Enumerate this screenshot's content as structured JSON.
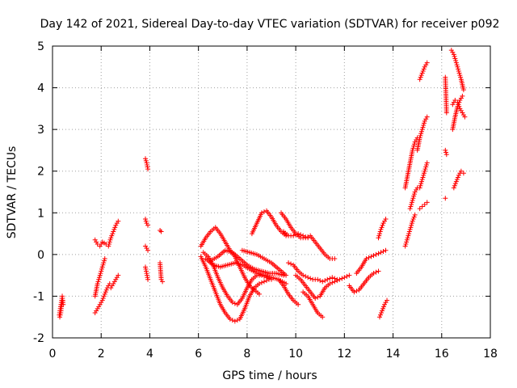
{
  "chart_data": {
    "type": "scatter",
    "title": "Day 142 of 2021, Sidereal Day-to-day VTEC variation (SDTVAR) for receiver p092",
    "xlabel": "GPS time / hours",
    "ylabel": "SDTVAR / TECUs",
    "xlim": [
      0,
      18
    ],
    "ylim": [
      -2,
      5
    ],
    "xticks": [
      "0",
      "2",
      "4",
      "6",
      "8",
      "10",
      "12",
      "14",
      "16",
      "18"
    ],
    "yticks": [
      "-2",
      "-1",
      "0",
      "1",
      "2",
      "3",
      "4",
      "5"
    ],
    "grid": true,
    "marker": "plus",
    "color": "#ff0000",
    "segments": [
      {
        "x": [
          0.28,
          0.32,
          0.36,
          0.4,
          0.44
        ],
        "y": [
          -1.45,
          -1.3,
          -1.15,
          -1.0,
          -1.2
        ]
      },
      {
        "x": [
          0.3,
          0.34,
          0.38,
          0.42
        ],
        "y": [
          -1.5,
          -1.4,
          -1.2,
          -1.1
        ]
      },
      {
        "x": [
          1.75,
          1.85,
          1.95,
          2.05,
          2.15,
          2.25,
          2.35
        ],
        "y": [
          -1.4,
          -1.3,
          -1.2,
          -1.1,
          -0.95,
          -0.8,
          -0.7
        ]
      },
      {
        "x": [
          1.75,
          1.85,
          1.95,
          2.05,
          2.15
        ],
        "y": [
          -1.0,
          -0.7,
          -0.5,
          -0.3,
          -0.1
        ]
      },
      {
        "x": [
          1.75,
          1.85,
          1.95,
          2.05,
          2.2
        ],
        "y": [
          0.35,
          0.25,
          0.2,
          0.3,
          0.25
        ]
      },
      {
        "x": [
          2.3,
          2.4,
          2.5,
          2.6,
          2.7
        ],
        "y": [
          0.2,
          0.4,
          0.55,
          0.7,
          0.8
        ]
      },
      {
        "x": [
          2.4,
          2.5,
          2.6,
          2.7
        ],
        "y": [
          -0.8,
          -0.7,
          -0.6,
          -0.5
        ]
      },
      {
        "x": [
          3.82,
          3.87,
          3.92
        ],
        "y": [
          2.3,
          2.2,
          2.05
        ]
      },
      {
        "x": [
          3.82,
          3.87,
          3.92
        ],
        "y": [
          0.85,
          0.75,
          0.7
        ]
      },
      {
        "x": [
          3.82,
          3.87,
          3.92
        ],
        "y": [
          0.2,
          0.15,
          0.1
        ]
      },
      {
        "x": [
          3.82,
          3.87,
          3.92
        ],
        "y": [
          -0.3,
          -0.45,
          -0.6
        ]
      },
      {
        "x": [
          4.42,
          4.47
        ],
        "y": [
          0.58,
          0.55
        ]
      },
      {
        "x": [
          4.42,
          4.47,
          4.52
        ],
        "y": [
          -0.2,
          -0.6,
          -0.65
        ]
      },
      {
        "x": [
          6.1,
          6.3,
          6.5,
          6.7,
          6.9,
          7.1,
          7.3,
          7.5,
          7.7,
          7.9,
          8.1,
          8.3,
          8.5
        ],
        "y": [
          0.2,
          0.4,
          0.55,
          0.65,
          0.5,
          0.3,
          0.1,
          -0.05,
          -0.3,
          -0.55,
          -0.75,
          -0.85,
          -0.95
        ]
      },
      {
        "x": [
          6.1,
          6.3,
          6.5,
          6.7,
          6.9,
          7.1,
          7.3,
          7.5,
          7.7,
          7.9,
          8.1,
          8.3,
          8.5,
          8.7,
          8.9
        ],
        "y": [
          -0.05,
          -0.3,
          -0.6,
          -0.9,
          -1.2,
          -1.4,
          -1.55,
          -1.6,
          -1.55,
          -1.3,
          -1.0,
          -0.8,
          -0.7,
          -0.65,
          -0.6
        ]
      },
      {
        "x": [
          6.2,
          6.4,
          6.6,
          6.8,
          7.0,
          7.2,
          7.4,
          7.6,
          7.8,
          8.0,
          8.2,
          8.4,
          8.6,
          8.8,
          9.0
        ],
        "y": [
          0.05,
          -0.05,
          -0.25,
          -0.55,
          -0.8,
          -1.0,
          -1.15,
          -1.2,
          -1.05,
          -0.8,
          -0.6,
          -0.5,
          -0.5,
          -0.55,
          -0.6
        ]
      },
      {
        "x": [
          6.3,
          6.6,
          6.9,
          7.2,
          7.5,
          7.8,
          8.1,
          8.4,
          8.7,
          9.0,
          9.3,
          9.6
        ],
        "y": [
          -0.1,
          -0.25,
          -0.3,
          -0.25,
          -0.2,
          -0.25,
          -0.35,
          -0.45,
          -0.5,
          -0.55,
          -0.6,
          -0.7
        ]
      },
      {
        "x": [
          6.5,
          6.8,
          7.1,
          7.4,
          7.7,
          8.0,
          8.3,
          8.6,
          8.9,
          9.2,
          9.5
        ],
        "y": [
          -0.15,
          -0.05,
          0.1,
          0.05,
          -0.1,
          -0.25,
          -0.35,
          -0.4,
          -0.45,
          -0.45,
          -0.5
        ]
      },
      {
        "x": [
          7.8,
          8.1,
          8.4,
          8.7,
          9.0,
          9.3,
          9.6
        ],
        "y": [
          0.1,
          0.05,
          0.0,
          -0.1,
          -0.2,
          -0.35,
          -0.5
        ]
      },
      {
        "x": [
          8.2,
          8.4,
          8.6,
          8.8,
          9.0,
          9.2,
          9.4,
          9.6
        ],
        "y": [
          0.5,
          0.75,
          1.0,
          1.05,
          0.9,
          0.7,
          0.55,
          0.45
        ]
      },
      {
        "x": [
          9.4,
          9.6,
          9.8,
          10.0,
          10.2,
          10.4,
          10.6,
          10.8,
          11.0,
          11.2,
          11.4,
          11.6
        ],
        "y": [
          1.0,
          0.85,
          0.65,
          0.5,
          0.4,
          0.4,
          0.45,
          0.3,
          0.15,
          0.0,
          -0.1,
          -0.1
        ]
      },
      {
        "x": [
          9.5,
          9.7,
          9.9,
          10.1,
          10.3,
          10.5
        ],
        "y": [
          0.55,
          0.45,
          0.45,
          0.5,
          0.45,
          0.4
        ]
      },
      {
        "x": [
          9.3,
          9.5,
          9.7,
          9.9,
          10.1
        ],
        "y": [
          -0.6,
          -0.75,
          -0.95,
          -1.1,
          -1.2
        ]
      },
      {
        "x": [
          9.7,
          9.9,
          10.1,
          10.3,
          10.5,
          10.7,
          10.9,
          11.1,
          11.3,
          11.5,
          11.7
        ],
        "y": [
          -0.2,
          -0.25,
          -0.4,
          -0.5,
          -0.55,
          -0.6,
          -0.6,
          -0.65,
          -0.6,
          -0.55,
          -0.6
        ]
      },
      {
        "x": [
          10.0,
          10.2,
          10.4,
          10.6,
          10.8,
          11.0,
          11.2,
          11.4,
          11.6,
          11.8,
          12.0,
          12.2
        ],
        "y": [
          -0.5,
          -0.6,
          -0.75,
          -0.9,
          -1.05,
          -1.0,
          -0.8,
          -0.7,
          -0.65,
          -0.6,
          -0.55,
          -0.5
        ]
      },
      {
        "x": [
          10.3,
          10.5,
          10.7,
          10.9,
          11.1
        ],
        "y": [
          -0.9,
          -1.0,
          -1.2,
          -1.4,
          -1.5
        ]
      },
      {
        "x": [
          12.2,
          12.4,
          12.6,
          12.8,
          13.0,
          13.2,
          13.4
        ],
        "y": [
          -0.75,
          -0.9,
          -0.85,
          -0.7,
          -0.55,
          -0.45,
          -0.4
        ]
      },
      {
        "x": [
          12.5,
          12.7,
          12.9,
          13.1,
          13.3,
          13.5,
          13.7
        ],
        "y": [
          -0.45,
          -0.3,
          -0.1,
          -0.05,
          0.0,
          0.05,
          0.1
        ]
      },
      {
        "x": [
          13.4,
          13.5,
          13.6,
          13.7
        ],
        "y": [
          0.4,
          0.6,
          0.75,
          0.85
        ]
      },
      {
        "x": [
          13.45,
          13.55,
          13.65,
          13.75
        ],
        "y": [
          -1.5,
          -1.35,
          -1.2,
          -1.1
        ]
      },
      {
        "x": [
          14.5,
          14.6,
          14.7,
          14.8,
          14.9
        ],
        "y": [
          0.2,
          0.4,
          0.6,
          0.8,
          0.95
        ]
      },
      {
        "x": [
          14.5,
          14.6,
          14.7,
          14.8,
          14.9,
          15.0
        ],
        "y": [
          1.6,
          1.9,
          2.2,
          2.5,
          2.7,
          2.8
        ]
      },
      {
        "x": [
          14.7,
          14.8,
          14.9,
          15.0
        ],
        "y": [
          1.1,
          1.3,
          1.5,
          1.6
        ]
      },
      {
        "x": [
          15.0,
          15.1,
          15.2,
          15.3,
          15.4
        ],
        "y": [
          2.5,
          2.8,
          3.0,
          3.2,
          3.3
        ]
      },
      {
        "x": [
          15.1,
          15.2,
          15.3,
          15.4
        ],
        "y": [
          1.6,
          1.8,
          2.0,
          2.2
        ]
      },
      {
        "x": [
          15.1,
          15.2,
          15.3,
          15.4
        ],
        "y": [
          1.1,
          1.15,
          1.2,
          1.25
        ]
      },
      {
        "x": [
          15.1,
          15.2,
          15.3,
          15.4
        ],
        "y": [
          4.2,
          4.35,
          4.5,
          4.6
        ]
      },
      {
        "x": [
          16.15,
          16.2
        ],
        "y": [
          4.25,
          3.4
        ]
      },
      {
        "x": [
          16.15,
          16.2
        ],
        "y": [
          2.5,
          2.4
        ]
      },
      {
        "x": [
          16.15
        ],
        "y": [
          1.35
        ]
      },
      {
        "x": [
          16.4,
          16.5,
          16.6,
          16.7,
          16.8,
          16.9
        ],
        "y": [
          4.9,
          4.8,
          4.6,
          4.4,
          4.2,
          3.95
        ]
      },
      {
        "x": [
          16.45,
          16.55,
          16.65,
          16.75,
          16.85
        ],
        "y": [
          3.0,
          3.3,
          3.55,
          3.7,
          3.8
        ]
      },
      {
        "x": [
          16.45,
          16.55,
          16.65,
          16.75,
          16.85,
          16.95
        ],
        "y": [
          3.6,
          3.7,
          3.65,
          3.5,
          3.4,
          3.3
        ]
      },
      {
        "x": [
          16.5,
          16.6,
          16.7,
          16.8,
          16.9
        ],
        "y": [
          1.6,
          1.75,
          1.9,
          2.0,
          1.95
        ]
      }
    ]
  }
}
